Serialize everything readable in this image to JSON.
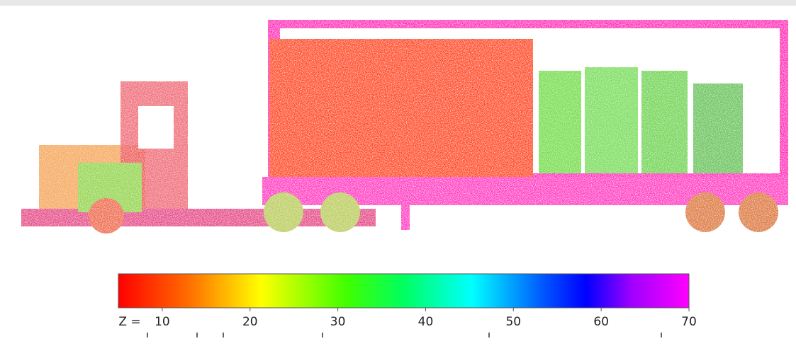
{
  "colorbar": {
    "label": "Z =",
    "lim": [
      5,
      70
    ],
    "ticks": [
      10,
      20,
      30,
      40,
      50,
      60,
      70
    ]
  }
}
